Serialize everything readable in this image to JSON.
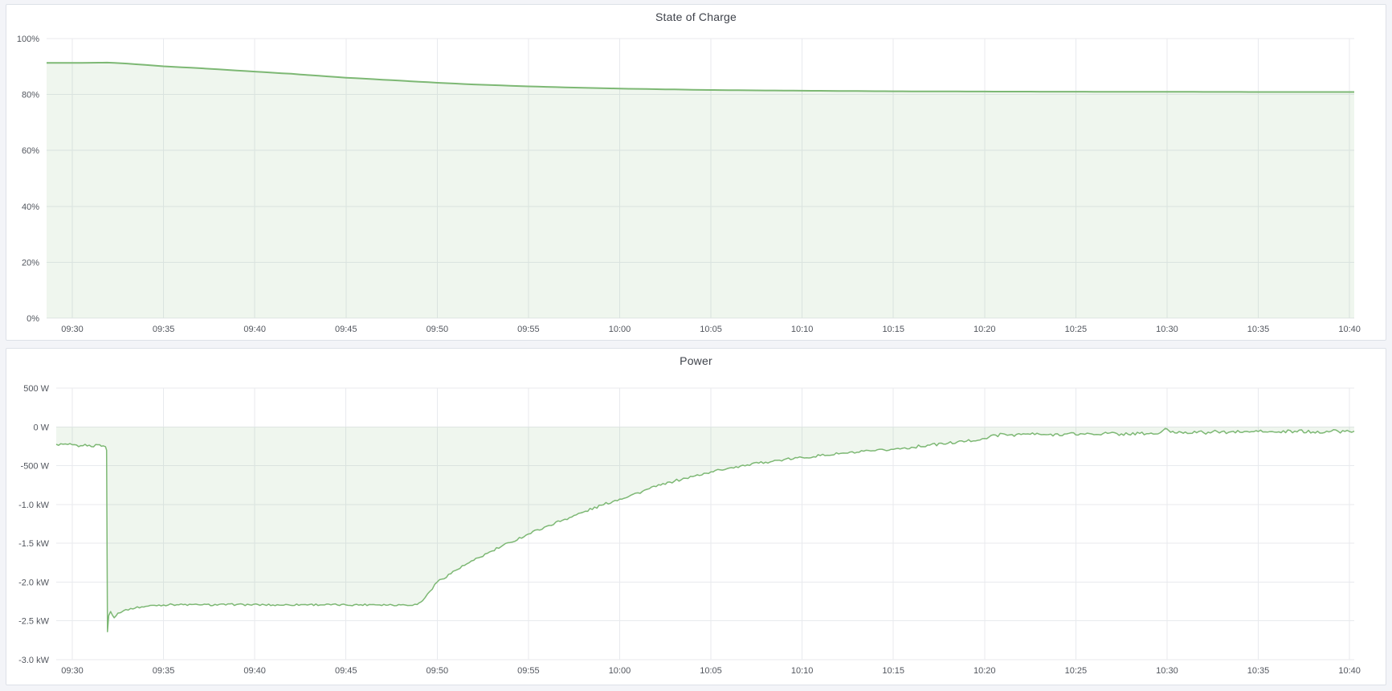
{
  "page": {
    "background_color": "#f3f4f8",
    "panel_background": "#ffffff",
    "panel_border_color": "#dde1e8",
    "accent_green": "#7db874",
    "fill_green": "rgba(123,183,115,0.12)",
    "grid_color": "#e8eaee",
    "tick_text_color": "#52565e",
    "title_text_color": "#3e424a"
  },
  "panels": [
    {
      "title": "State of Charge"
    },
    {
      "title": "Power"
    }
  ],
  "chart_data": [
    {
      "type": "area",
      "title": "State of Charge",
      "ylabel": "",
      "xlabel": "",
      "unit": "percent",
      "legend": "none",
      "grid": "on",
      "line_color": "#7db874",
      "fill_color": "rgba(123,183,115,0.12)",
      "fill_baseline": 0,
      "sample_step_minutes": 0.5,
      "x_axis": {
        "domain_minutes": [
          -1.41,
          70.26
        ],
        "tick_minutes": [
          0,
          5,
          10,
          15,
          20,
          25,
          30,
          35,
          40,
          45,
          50,
          55,
          60,
          65,
          70
        ],
        "tick_labels": [
          "09:30",
          "09:35",
          "09:40",
          "09:45",
          "09:50",
          "09:55",
          "10:00",
          "10:05",
          "10:10",
          "10:15",
          "10:20",
          "10:25",
          "10:30",
          "10:35",
          "10:40"
        ]
      },
      "y_axis": {
        "range": [
          0,
          100
        ],
        "tick_values": [
          100,
          80,
          60,
          40,
          20,
          0
        ],
        "tick_labels": [
          "100%",
          "80%",
          "60%",
          "40%",
          "20%",
          "0%"
        ]
      },
      "series": [
        {
          "name": "State of Charge",
          "noise": 0,
          "points_min_value": [
            [
              -1.41,
              91.3
            ],
            [
              0,
              91.3
            ],
            [
              1,
              91.35
            ],
            [
              1.9,
              91.4
            ],
            [
              2.3,
              91.3
            ],
            [
              3,
              91.05
            ],
            [
              5,
              90.1
            ],
            [
              7,
              89.4
            ],
            [
              10,
              88.2
            ],
            [
              12,
              87.4
            ],
            [
              15,
              86.0
            ],
            [
              17,
              85.3
            ],
            [
              20,
              84.2
            ],
            [
              22,
              83.6
            ],
            [
              25,
              82.9
            ],
            [
              27,
              82.55
            ],
            [
              30,
              82.1
            ],
            [
              32,
              81.9
            ],
            [
              35,
              81.6
            ],
            [
              38,
              81.45
            ],
            [
              40,
              81.35
            ],
            [
              45,
              81.15
            ],
            [
              50,
              81.05
            ],
            [
              55,
              81.0
            ],
            [
              60,
              80.95
            ],
            [
              65,
              80.9
            ],
            [
              70,
              80.9
            ],
            [
              70.26,
              80.9
            ]
          ]
        }
      ]
    },
    {
      "type": "area",
      "title": "Power",
      "ylabel": "",
      "xlabel": "",
      "unit": "watts",
      "legend": "none",
      "grid": "on",
      "line_color": "#7db874",
      "fill_color": "rgba(123,183,115,0.12)",
      "fill_baseline": 0,
      "sample_step_minutes": 0.12,
      "x_axis": {
        "domain_minutes": [
          -0.88,
          70.26
        ],
        "tick_minutes": [
          0,
          5,
          10,
          15,
          20,
          25,
          30,
          35,
          40,
          45,
          50,
          55,
          60,
          65,
          70
        ],
        "tick_labels": [
          "09:30",
          "09:35",
          "09:40",
          "09:45",
          "09:50",
          "09:55",
          "10:00",
          "10:05",
          "10:10",
          "10:15",
          "10:20",
          "10:25",
          "10:30",
          "10:35",
          "10:40"
        ]
      },
      "y_axis": {
        "range": [
          -3000,
          500
        ],
        "tick_values": [
          500,
          0,
          -500,
          -1000,
          -1500,
          -2000,
          -2500,
          -3000
        ],
        "tick_labels": [
          "500 W",
          "0 W",
          "-500 W",
          "-1.0 kW",
          "-1.5 kW",
          "-2.0 kW",
          "-2.5 kW",
          "-3.0 kW"
        ]
      },
      "series": [
        {
          "name": "Power",
          "noise": 12,
          "points_min_value": [
            [
              -0.88,
              -225,
              14
            ],
            [
              0,
              -230,
              14
            ],
            [
              0.35,
              -255,
              12
            ],
            [
              0.7,
              -225,
              14
            ],
            [
              1.05,
              -255,
              12
            ],
            [
              1.4,
              -230,
              12
            ],
            [
              1.7,
              -245,
              10
            ],
            [
              1.82,
              -255,
              4
            ],
            [
              1.88,
              -300,
              2
            ],
            [
              1.93,
              -2640,
              2
            ],
            [
              2.0,
              -2430,
              6
            ],
            [
              2.1,
              -2380,
              8
            ],
            [
              2.3,
              -2460,
              10
            ],
            [
              2.5,
              -2400,
              10
            ],
            [
              2.8,
              -2370,
              12
            ],
            [
              3.2,
              -2340,
              12
            ],
            [
              3.8,
              -2320,
              12
            ],
            [
              4.5,
              -2300,
              12
            ],
            [
              5.5,
              -2290,
              12
            ],
            [
              7,
              -2295,
              12
            ],
            [
              9,
              -2290,
              12
            ],
            [
              11,
              -2295,
              12
            ],
            [
              13,
              -2290,
              12
            ],
            [
              15,
              -2295,
              12
            ],
            [
              16.5,
              -2290,
              12
            ],
            [
              18,
              -2295,
              12
            ],
            [
              18.9,
              -2290,
              10
            ],
            [
              19.2,
              -2240,
              12
            ],
            [
              19.6,
              -2120,
              14
            ],
            [
              20,
              -2000,
              16
            ],
            [
              21,
              -1850,
              16
            ],
            [
              22,
              -1720,
              16
            ],
            [
              23,
              -1600,
              18
            ],
            [
              24,
              -1490,
              16
            ],
            [
              25,
              -1380,
              16
            ],
            [
              26,
              -1280,
              18
            ],
            [
              27,
              -1190,
              16
            ],
            [
              28,
              -1100,
              18
            ],
            [
              29,
              -1010,
              16
            ],
            [
              30,
              -930,
              16
            ],
            [
              31,
              -850,
              18
            ],
            [
              32,
              -770,
              16
            ],
            [
              33,
              -700,
              18
            ],
            [
              34,
              -640,
              16
            ],
            [
              35,
              -580,
              16
            ],
            [
              36,
              -530,
              16
            ],
            [
              37,
              -490,
              16
            ],
            [
              38,
              -455,
              16
            ],
            [
              39,
              -423,
              16
            ],
            [
              40,
              -395,
              16
            ],
            [
              41,
              -370,
              18
            ],
            [
              42,
              -348,
              16
            ],
            [
              43,
              -327,
              16
            ],
            [
              44,
              -308,
              16
            ],
            [
              45,
              -290,
              18
            ],
            [
              46,
              -262,
              18
            ],
            [
              47,
              -235,
              18
            ],
            [
              48,
              -210,
              18
            ],
            [
              49,
              -185,
              18
            ],
            [
              50,
              -150,
              20
            ],
            [
              50.6,
              -105,
              22
            ],
            [
              51.5,
              -100,
              22
            ],
            [
              52.5,
              -95,
              24
            ],
            [
              53.5,
              -100,
              22
            ],
            [
              54.5,
              -90,
              24
            ],
            [
              55.5,
              -95,
              22
            ],
            [
              56.5,
              -85,
              24
            ],
            [
              57.5,
              -90,
              22
            ],
            [
              58.5,
              -85,
              22
            ],
            [
              59.5,
              -90,
              18
            ],
            [
              59.9,
              -20,
              12
            ],
            [
              60.2,
              -70,
              22
            ],
            [
              61,
              -65,
              22
            ],
            [
              62,
              -75,
              24
            ],
            [
              63,
              -60,
              24
            ],
            [
              64,
              -70,
              22
            ],
            [
              65,
              -60,
              24
            ],
            [
              66,
              -70,
              22
            ],
            [
              67,
              -55,
              24
            ],
            [
              68,
              -65,
              22
            ],
            [
              69,
              -55,
              22
            ],
            [
              70,
              -60,
              18
            ],
            [
              70.26,
              -55,
              0
            ]
          ]
        }
      ]
    }
  ]
}
